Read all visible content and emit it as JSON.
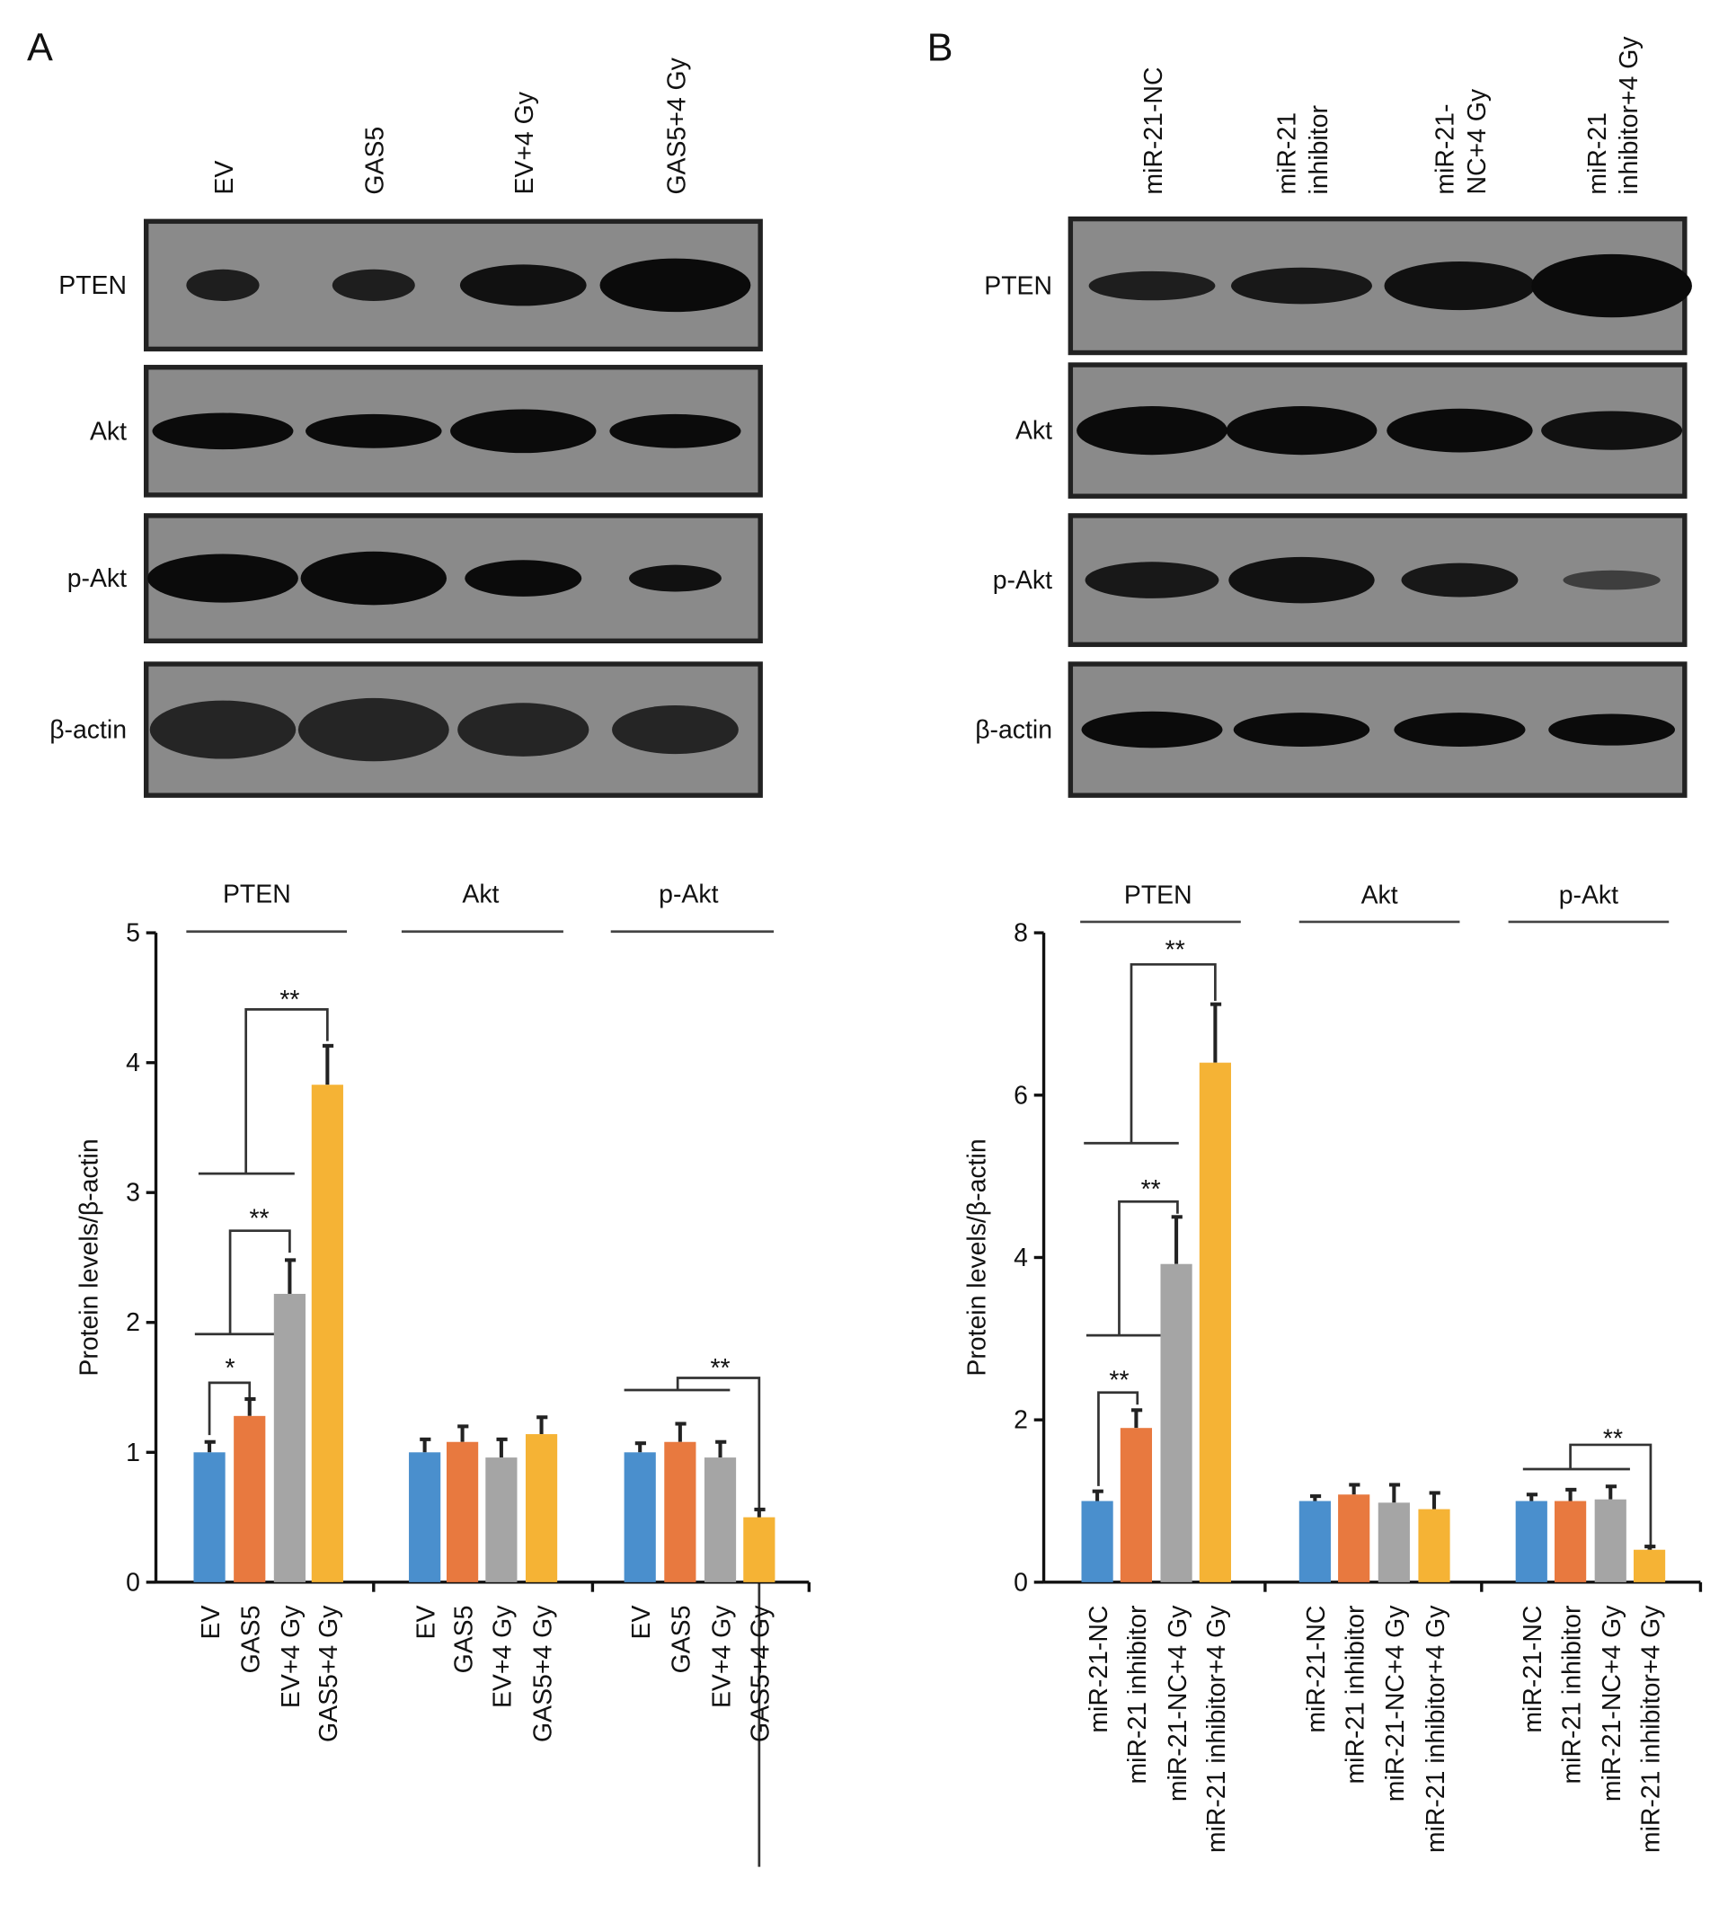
{
  "panels": [
    {
      "label": "A",
      "lanes": [
        [
          "EV"
        ],
        [
          "GAS5"
        ],
        [
          "EV+4 Gy"
        ],
        [
          "GAS5+4 Gy"
        ]
      ],
      "rows": [
        "PTEN",
        "Akt",
        "p-Akt",
        "β-actin"
      ]
    },
    {
      "label": "B",
      "lanes": [
        [
          "miR-21-NC"
        ],
        [
          "miR-21",
          "inhibitor"
        ],
        [
          "miR-21-",
          "NC+4 Gy"
        ],
        [
          "miR-21",
          "inhibitor+4 Gy"
        ]
      ],
      "rows": [
        "PTEN",
        "Akt",
        "p-Akt",
        "β-actin"
      ]
    }
  ],
  "chart_data": [
    {
      "type": "bar",
      "ylabel": "Protein levels/β-actin",
      "categories": [
        "PTEN",
        "Akt",
        "p-Akt"
      ],
      "series": [
        {
          "name": "EV",
          "color": "#4a8fcd",
          "values": [
            1.0,
            1.0,
            1.0
          ],
          "errors": [
            0.08,
            0.1,
            0.07
          ]
        },
        {
          "name": "GAS5",
          "color": "#e8793f",
          "values": [
            1.28,
            1.08,
            1.08
          ],
          "errors": [
            0.13,
            0.12,
            0.14
          ]
        },
        {
          "name": "EV+4 Gy",
          "color": "#a5a5a5",
          "values": [
            2.22,
            0.96,
            0.96
          ],
          "errors": [
            0.26,
            0.14,
            0.12
          ]
        },
        {
          "name": "GAS5+4 Gy",
          "color": "#f5b335",
          "values": [
            3.83,
            1.14,
            0.5
          ],
          "errors": [
            0.3,
            0.13,
            0.06
          ]
        }
      ],
      "ylim": [
        0,
        5
      ],
      "yticks": [
        0,
        1,
        2,
        3,
        4,
        5
      ],
      "annotations": [
        "*",
        "**",
        "**",
        "**"
      ]
    },
    {
      "type": "bar",
      "ylabel": "Protein levels/β-actin",
      "categories": [
        "PTEN",
        "Akt",
        "p-Akt"
      ],
      "series": [
        {
          "name": "miR-21-NC",
          "color": "#4a8fcd",
          "values": [
            1.0,
            1.0,
            1.0
          ],
          "errors": [
            0.12,
            0.06,
            0.08
          ]
        },
        {
          "name": "miR-21 inhibitor",
          "color": "#e8793f",
          "values": [
            1.9,
            1.08,
            1.0
          ],
          "errors": [
            0.22,
            0.12,
            0.14
          ]
        },
        {
          "name": "miR-21-NC+4 Gy",
          "color": "#a5a5a5",
          "values": [
            3.92,
            0.98,
            1.02
          ],
          "errors": [
            0.58,
            0.22,
            0.16
          ]
        },
        {
          "name": "miR-21 inhibitor+4 Gy",
          "color": "#f5b335",
          "values": [
            6.4,
            0.9,
            0.4
          ],
          "errors": [
            0.72,
            0.2,
            0.04
          ]
        }
      ],
      "ylim": [
        0,
        8
      ],
      "yticks": [
        0,
        2,
        4,
        6,
        8
      ],
      "annotations": [
        "**",
        "**",
        "**",
        "**"
      ]
    }
  ]
}
